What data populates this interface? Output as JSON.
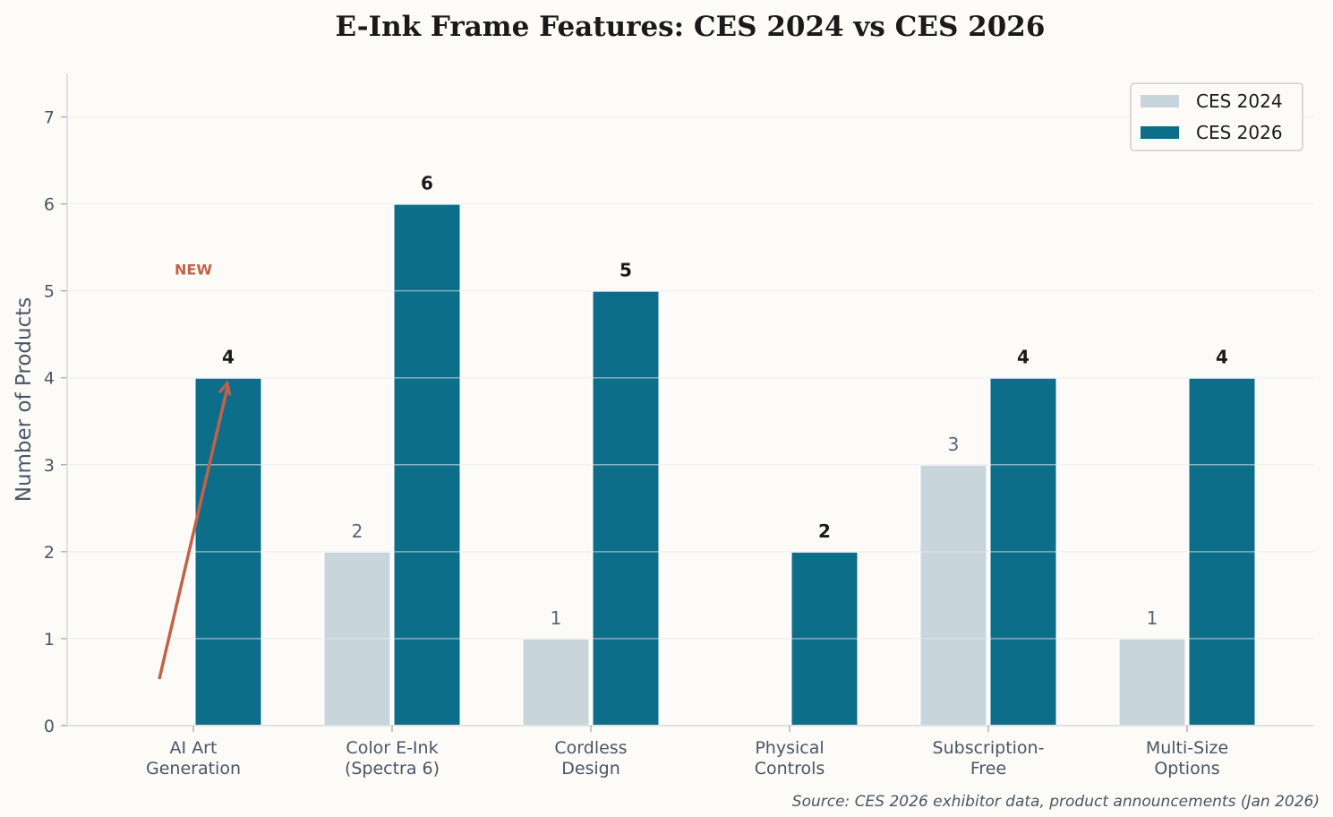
{
  "chart_data": {
    "type": "bar",
    "title": "E-Ink Frame Features: CES 2024 vs CES 2026",
    "xlabel": "",
    "ylabel": "Number of Products",
    "ylim": [
      0,
      7.5
    ],
    "yticks": [
      0,
      1,
      2,
      3,
      4,
      5,
      6,
      7
    ],
    "grid": true,
    "legend_placement": "top-right",
    "categories": [
      [
        "AI Art",
        "Generation"
      ],
      [
        "Color E-Ink",
        "(Spectra 6)"
      ],
      [
        "Cordless",
        "Design"
      ],
      [
        "Physical",
        "Controls"
      ],
      [
        "Subscription-",
        "Free"
      ],
      [
        "Multi-Size",
        "Options"
      ]
    ],
    "series": [
      {
        "name": "CES 2024",
        "color": "#c8d5db",
        "values": [
          0,
          2,
          1,
          0,
          3,
          1
        ]
      },
      {
        "name": "CES 2026",
        "color": "#0d6e89",
        "values": [
          4,
          6,
          5,
          2,
          4,
          4
        ]
      }
    ],
    "annotation": {
      "text": "NEW",
      "color": "#c4614a",
      "category_index": 0,
      "text_y": 5.25,
      "arrow_from": [
        -0.17,
        0.55
      ],
      "arrow_to": [
        0.17,
        3.94
      ]
    },
    "source": "Source: CES 2026 exhibitor data, product announcements (Jan 2026)"
  }
}
